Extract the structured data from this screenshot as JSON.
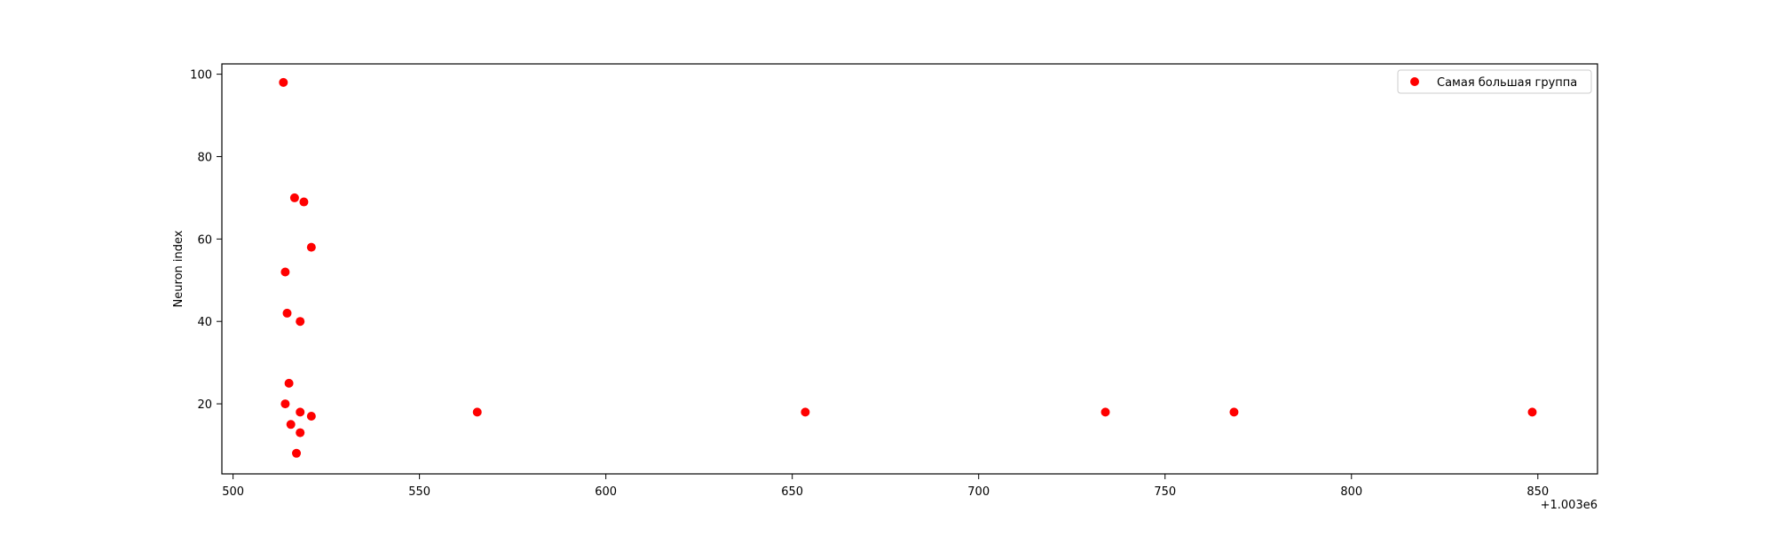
{
  "chart_data": {
    "type": "scatter",
    "title": "",
    "xlabel": "",
    "ylabel": "Neuron index",
    "x_offset_label": "+1.003e6",
    "xlim": [
      497,
      866
    ],
    "ylim": [
      3,
      102.5
    ],
    "xticks": [
      500,
      550,
      600,
      650,
      700,
      750,
      800,
      850
    ],
    "yticks": [
      20,
      40,
      60,
      80,
      100
    ],
    "grid": false,
    "legend_position": "top-right",
    "series": [
      {
        "name": "Самая большая группа",
        "color": "#ff0000",
        "points": [
          {
            "x": 513.5,
            "y": 98
          },
          {
            "x": 516.5,
            "y": 70
          },
          {
            "x": 519,
            "y": 69
          },
          {
            "x": 521,
            "y": 58
          },
          {
            "x": 514,
            "y": 52
          },
          {
            "x": 514.5,
            "y": 42
          },
          {
            "x": 518,
            "y": 40
          },
          {
            "x": 515,
            "y": 25
          },
          {
            "x": 514,
            "y": 20
          },
          {
            "x": 518,
            "y": 18
          },
          {
            "x": 521,
            "y": 17
          },
          {
            "x": 515.5,
            "y": 15
          },
          {
            "x": 518,
            "y": 13
          },
          {
            "x": 517,
            "y": 8
          },
          {
            "x": 565.5,
            "y": 18
          },
          {
            "x": 653.5,
            "y": 18
          },
          {
            "x": 734,
            "y": 18
          },
          {
            "x": 768.5,
            "y": 18
          },
          {
            "x": 848.5,
            "y": 18
          }
        ]
      }
    ]
  }
}
